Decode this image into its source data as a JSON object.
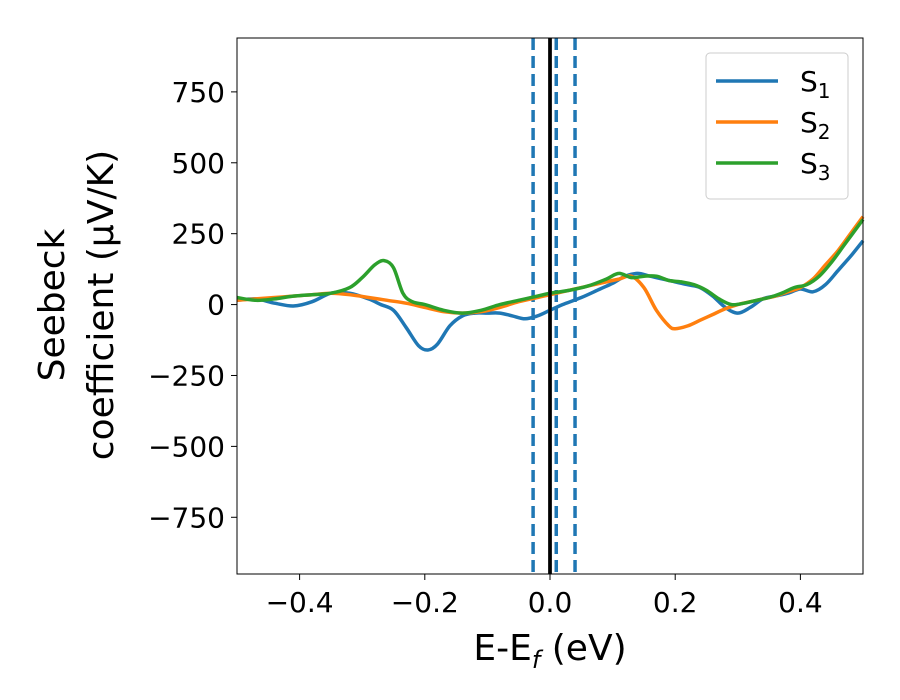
{
  "chart_data": {
    "type": "line",
    "xlabel_main": "E-E",
    "xlabel_sub": "f",
    "xlabel_unit": " (eV)",
    "ylabel_line1": "Seebeck",
    "ylabel_line2": "coefficient  (μV/K)",
    "xlim": [
      -0.5,
      0.5
    ],
    "ylim": [
      -950,
      940
    ],
    "x_ticks": [
      -0.4,
      -0.2,
      0.0,
      0.2,
      0.4
    ],
    "x_tick_labels": [
      "−0.4",
      "−0.2",
      "0.0",
      "0.2",
      "0.4"
    ],
    "y_ticks": [
      -750,
      -500,
      -250,
      0,
      250,
      500,
      750
    ],
    "y_tick_labels": [
      "−750",
      "−500",
      "−250",
      "0",
      "250",
      "500",
      "750"
    ],
    "grid": false,
    "legend_position": "top-right",
    "vlines": [
      {
        "x": 0.0,
        "style": "solid",
        "color": "#000000"
      },
      {
        "x": -0.027,
        "style": "dashed",
        "color": "#1f77b4"
      },
      {
        "x": 0.01,
        "style": "dashed",
        "color": "#1f77b4"
      },
      {
        "x": 0.04,
        "style": "dashed",
        "color": "#1f77b4"
      }
    ],
    "series": [
      {
        "name": "S",
        "subscript": "1",
        "color": "#1f77b4",
        "x": [
          -0.5,
          -0.47,
          -0.44,
          -0.41,
          -0.38,
          -0.35,
          -0.32,
          -0.29,
          -0.27,
          -0.25,
          -0.23,
          -0.21,
          -0.195,
          -0.18,
          -0.16,
          -0.14,
          -0.12,
          -0.1,
          -0.08,
          -0.06,
          -0.04,
          -0.02,
          0.0,
          0.02,
          0.05,
          0.08,
          0.1,
          0.12,
          0.14,
          0.16,
          0.18,
          0.2,
          0.22,
          0.24,
          0.26,
          0.28,
          0.3,
          0.32,
          0.34,
          0.36,
          0.38,
          0.4,
          0.42,
          0.44,
          0.46,
          0.48,
          0.5
        ],
        "y": [
          15,
          20,
          5,
          -5,
          10,
          40,
          40,
          20,
          0,
          -20,
          -80,
          -145,
          -160,
          -140,
          -75,
          -40,
          -30,
          -30,
          -30,
          -40,
          -50,
          -40,
          -20,
          0,
          25,
          55,
          75,
          100,
          110,
          100,
          90,
          80,
          70,
          60,
          30,
          -10,
          -30,
          -10,
          20,
          30,
          40,
          55,
          45,
          70,
          120,
          170,
          225
        ]
      },
      {
        "name": "S",
        "subscript": "2",
        "color": "#ff7f0e",
        "x": [
          -0.5,
          -0.47,
          -0.44,
          -0.41,
          -0.38,
          -0.35,
          -0.32,
          -0.29,
          -0.26,
          -0.23,
          -0.2,
          -0.17,
          -0.14,
          -0.11,
          -0.08,
          -0.05,
          -0.02,
          0.0,
          0.02,
          0.05,
          0.08,
          0.11,
          0.13,
          0.15,
          0.17,
          0.19,
          0.2,
          0.22,
          0.24,
          0.26,
          0.28,
          0.3,
          0.32,
          0.34,
          0.36,
          0.38,
          0.4,
          0.42,
          0.44,
          0.46,
          0.48,
          0.5
        ],
        "y": [
          15,
          20,
          25,
          30,
          35,
          40,
          35,
          25,
          15,
          5,
          -10,
          -25,
          -30,
          -25,
          -10,
          10,
          25,
          35,
          45,
          60,
          75,
          90,
          100,
          60,
          -20,
          -75,
          -85,
          -75,
          -55,
          -35,
          -15,
          0,
          10,
          20,
          30,
          45,
          60,
          90,
          140,
          190,
          250,
          310
        ]
      },
      {
        "name": "S",
        "subscript": "3",
        "color": "#2ca02c",
        "x": [
          -0.5,
          -0.47,
          -0.44,
          -0.41,
          -0.38,
          -0.35,
          -0.32,
          -0.3,
          -0.28,
          -0.265,
          -0.25,
          -0.235,
          -0.22,
          -0.2,
          -0.17,
          -0.14,
          -0.11,
          -0.08,
          -0.05,
          -0.02,
          0.0,
          0.03,
          0.06,
          0.09,
          0.11,
          0.13,
          0.15,
          0.17,
          0.19,
          0.21,
          0.23,
          0.25,
          0.27,
          0.29,
          0.31,
          0.33,
          0.35,
          0.37,
          0.39,
          0.41,
          0.43,
          0.45,
          0.47,
          0.5
        ],
        "y": [
          25,
          15,
          20,
          30,
          35,
          40,
          60,
          95,
          140,
          155,
          130,
          40,
          10,
          0,
          -20,
          -30,
          -20,
          0,
          15,
          30,
          40,
          50,
          65,
          90,
          110,
          95,
          100,
          100,
          85,
          80,
          70,
          50,
          20,
          0,
          5,
          15,
          25,
          40,
          60,
          70,
          100,
          150,
          210,
          300
        ]
      }
    ]
  }
}
